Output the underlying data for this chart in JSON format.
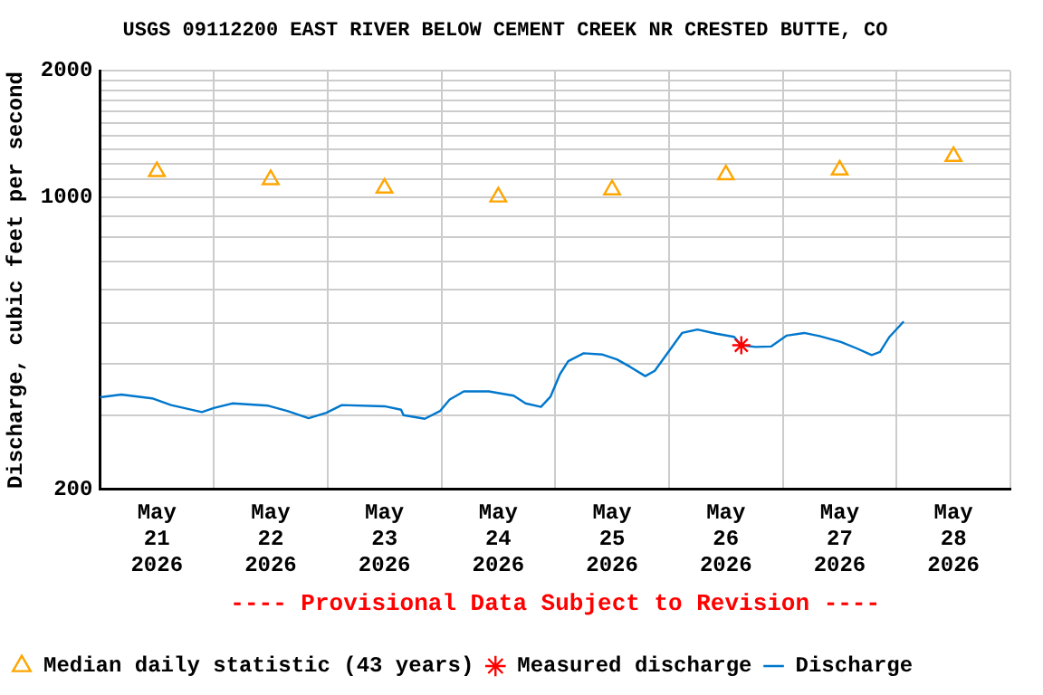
{
  "chart_data": {
    "type": "line",
    "title": "USGS 09112200 EAST RIVER BELOW CEMENT CREEK NR CRESTED BUTTE, CO",
    "ylabel": "Discharge, cubic feet per second",
    "annotations": [
      "---- Provisional Data Subject to Revision ----"
    ],
    "log": true,
    "grid": true,
    "legend": "bottom",
    "xlim": [
      "2026-05-21T00:00",
      "2026-05-29T00:00"
    ],
    "xticks": [
      {
        "value": "2026-05-21T00:00",
        "label": null
      },
      {
        "value": "2026-05-21T12:00",
        "label": "May 21 2026"
      },
      {
        "value": "2026-05-22T00:00",
        "label": null
      },
      {
        "value": "2026-05-22T12:00",
        "label": "May 22 2026"
      },
      {
        "value": "2026-05-23T00:00",
        "label": null
      },
      {
        "value": "2026-05-23T12:00",
        "label": "May 23 2026"
      },
      {
        "value": "2026-05-24T00:00",
        "label": null
      },
      {
        "value": "2026-05-24T12:00",
        "label": "May 24 2026"
      },
      {
        "value": "2026-05-25T00:00",
        "label": null
      },
      {
        "value": "2026-05-25T12:00",
        "label": "May 25 2026"
      },
      {
        "value": "2026-05-26T00:00",
        "label": null
      },
      {
        "value": "2026-05-26T12:00",
        "label": "May 26 2026"
      },
      {
        "value": "2026-05-27T00:00",
        "label": null
      },
      {
        "value": "2026-05-27T12:00",
        "label": "May 27 2026"
      },
      {
        "value": "2026-05-28T00:00",
        "label": null
      },
      {
        "value": "2026-05-28T12:00",
        "label": "May 28 2026"
      },
      {
        "value": "2026-05-29T00:00",
        "label": null
      }
    ],
    "ylim": [
      200,
      2000
    ],
    "yticks": [
      200,
      {
        "value": 300,
        "label": null
      },
      {
        "value": 400,
        "label": null
      },
      {
        "value": 500,
        "label": null
      },
      {
        "value": 600,
        "label": null
      },
      {
        "value": 700,
        "label": null
      },
      {
        "value": 800,
        "label": null
      },
      {
        "value": 900,
        "label": null
      },
      1000,
      {
        "value": 1100,
        "label": null
      },
      {
        "value": 1200,
        "label": null
      },
      {
        "value": 1300,
        "label": null
      },
      {
        "value": 1400,
        "label": null
      },
      {
        "value": 1500,
        "label": null
      },
      {
        "value": 1600,
        "label": null
      },
      {
        "value": 1700,
        "label": null
      },
      {
        "value": 1800,
        "label": null
      },
      {
        "value": 1900,
        "label": null
      },
      2000
    ],
    "series": [
      {
        "name": "Median daily statistic (43 years)",
        "type": "scatter",
        "marker": "triangle",
        "color": "#ffa500",
        "x": [
          "2026-05-21T12:00",
          "2026-05-22T12:00",
          "2026-05-23T12:00",
          "2026-05-24T12:00",
          "2026-05-25T12:00",
          "2026-05-26T12:00",
          "2026-05-27T12:00",
          "2026-05-28T12:00"
        ],
        "values": [
          1150,
          1100,
          1050,
          1000,
          1040,
          1130,
          1160,
          1250
        ]
      },
      {
        "name": "Measured discharge",
        "type": "scatter",
        "marker": "cross",
        "color": "#ff0000",
        "x": [
          "2026-05-26T15:15"
        ],
        "values": [
          442
        ]
      },
      {
        "name": "Discharge",
        "type": "line",
        "marker": "none",
        "line_style": "solid",
        "color": "#0077cc",
        "x": [
          "2026-05-21T00:00",
          "2026-05-21T04:30",
          "2026-05-21T11:00",
          "2026-05-21T15:00",
          "2026-05-21T21:30",
          "2026-05-22T00:00",
          "2026-05-22T04:00",
          "2026-05-22T11:30",
          "2026-05-22T15:30",
          "2026-05-22T20:00",
          "2026-05-22T23:45",
          "2026-05-23T03:00",
          "2026-05-23T12:00",
          "2026-05-23T15:30",
          "2026-05-23T16:00",
          "2026-05-23T20:30",
          "2026-05-23T23:45",
          "2026-05-24T01:45",
          "2026-05-24T04:45",
          "2026-05-24T10:00",
          "2026-05-24T15:15",
          "2026-05-24T17:45",
          "2026-05-24T21:00",
          "2026-05-24T23:00",
          "2026-05-25T01:00",
          "2026-05-25T02:45",
          "2026-05-25T06:00",
          "2026-05-25T10:00",
          "2026-05-25T13:00",
          "2026-05-25T15:45",
          "2026-05-25T19:00",
          "2026-05-25T21:00",
          "2026-05-26T00:00",
          "2026-05-26T02:45",
          "2026-05-26T06:00",
          "2026-05-26T10:00",
          "2026-05-26T13:45",
          "2026-05-26T15:15",
          "2026-05-26T18:15",
          "2026-05-26T21:30",
          "2026-05-27T00:45",
          "2026-05-27T04:30",
          "2026-05-27T07:45",
          "2026-05-27T12:15",
          "2026-05-27T15:30",
          "2026-05-27T18:45",
          "2026-05-27T20:30",
          "2026-05-27T22:30",
          "2026-05-28T01:30"
        ],
        "values": [
          332,
          337,
          330,
          318,
          306,
          313,
          321,
          317,
          308,
          296,
          305,
          318,
          316,
          310,
          301,
          295,
          308,
          328,
          343,
          343,
          335,
          321,
          315,
          333,
          377,
          405,
          423,
          420,
          409,
          393,
          373,
          384,
          428,
          473,
          482,
          471,
          463,
          442,
          438,
          439,
          466,
          473,
          465,
          450,
          435,
          419,
          426,
          463,
          504
        ]
      }
    ]
  }
}
